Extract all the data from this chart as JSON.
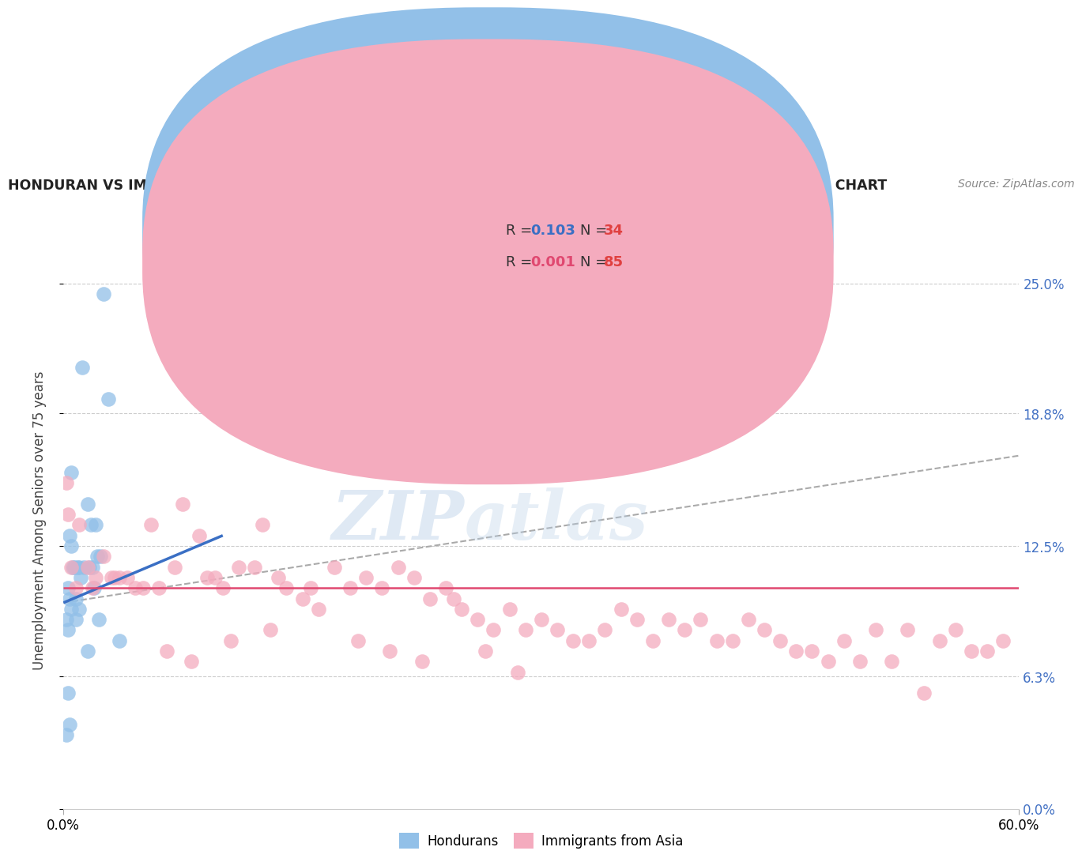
{
  "title": "HONDURAN VS IMMIGRANTS FROM ASIA UNEMPLOYMENT AMONG SENIORS OVER 75 YEARS CORRELATION CHART",
  "source": "Source: ZipAtlas.com",
  "ylabel": "Unemployment Among Seniors over 75 years",
  "ytick_values": [
    0.0,
    6.3,
    12.5,
    18.8,
    25.0
  ],
  "xlim": [
    0.0,
    60.0
  ],
  "ylim": [
    0.0,
    27.5
  ],
  "legend_blue_r": "0.103",
  "legend_blue_n": "34",
  "legend_pink_r": "0.001",
  "legend_pink_n": "85",
  "blue_color": "#92C0E8",
  "pink_color": "#F4ABBE",
  "blue_line_color": "#3A6FC4",
  "pink_line_color": "#E04870",
  "dashed_line_color": "#AAAAAA",
  "watermark_text": "ZIPatlas",
  "blue_x": [
    2.5,
    1.2,
    2.8,
    0.5,
    1.5,
    1.7,
    2.0,
    0.4,
    0.5,
    0.6,
    0.7,
    0.9,
    1.0,
    1.1,
    1.3,
    1.6,
    1.8,
    1.9,
    2.1,
    2.3,
    0.3,
    0.4,
    0.5,
    0.2,
    0.3,
    0.8,
    1.5,
    2.2,
    3.5,
    1.0,
    0.8,
    0.3,
    0.4,
    0.2
  ],
  "blue_y": [
    24.5,
    21.0,
    19.5,
    16.0,
    14.5,
    13.5,
    13.5,
    13.0,
    12.5,
    11.5,
    11.5,
    11.5,
    11.5,
    11.0,
    11.5,
    11.5,
    11.5,
    10.5,
    12.0,
    12.0,
    10.5,
    10.0,
    9.5,
    9.0,
    8.5,
    9.0,
    7.5,
    9.0,
    8.0,
    9.5,
    10.0,
    5.5,
    4.0,
    3.5
  ],
  "pink_x": [
    0.2,
    0.3,
    0.5,
    0.8,
    1.0,
    1.5,
    2.0,
    2.5,
    3.0,
    3.5,
    4.0,
    4.5,
    5.0,
    5.5,
    6.0,
    7.0,
    7.5,
    8.5,
    9.0,
    9.5,
    10.0,
    11.0,
    12.0,
    12.5,
    13.5,
    14.0,
    15.0,
    16.0,
    17.0,
    18.0,
    19.0,
    20.0,
    21.0,
    22.0,
    23.0,
    24.0,
    25.0,
    26.0,
    27.0,
    28.0,
    29.0,
    30.0,
    31.0,
    32.0,
    33.0,
    34.0,
    35.0,
    36.0,
    37.0,
    38.0,
    39.0,
    40.0,
    41.0,
    42.0,
    43.0,
    44.0,
    45.0,
    46.0,
    47.0,
    48.0,
    49.0,
    50.0,
    51.0,
    52.0,
    53.0,
    54.0,
    55.0,
    56.0,
    57.0,
    58.0,
    59.0,
    1.8,
    3.2,
    6.5,
    8.0,
    10.5,
    13.0,
    15.5,
    18.5,
    20.5,
    22.5,
    24.5,
    26.5,
    28.5
  ],
  "pink_y": [
    15.5,
    14.0,
    11.5,
    10.5,
    13.5,
    11.5,
    11.0,
    12.0,
    11.0,
    11.0,
    11.0,
    10.5,
    10.5,
    13.5,
    10.5,
    11.5,
    14.5,
    13.0,
    11.0,
    11.0,
    10.5,
    11.5,
    11.5,
    13.5,
    11.0,
    10.5,
    10.0,
    9.5,
    11.5,
    10.5,
    11.0,
    10.5,
    11.5,
    11.0,
    10.0,
    10.5,
    9.5,
    9.0,
    8.5,
    9.5,
    8.5,
    9.0,
    8.5,
    8.0,
    8.0,
    8.5,
    9.5,
    9.0,
    8.0,
    9.0,
    8.5,
    9.0,
    8.0,
    8.0,
    9.0,
    8.5,
    8.0,
    7.5,
    7.5,
    7.0,
    8.0,
    7.0,
    8.5,
    7.0,
    8.5,
    5.5,
    8.0,
    8.5,
    7.5,
    7.5,
    8.0,
    10.5,
    11.0,
    7.5,
    7.0,
    8.0,
    8.5,
    10.5,
    8.0,
    7.5,
    7.0,
    10.0,
    7.5,
    6.5
  ],
  "blue_line_x0": 0.0,
  "blue_line_x1": 10.0,
  "blue_line_y0": 9.8,
  "blue_line_y1": 13.0,
  "pink_line_y": 10.5,
  "dashed_line_y0": 9.8,
  "dashed_line_y1": 16.8
}
